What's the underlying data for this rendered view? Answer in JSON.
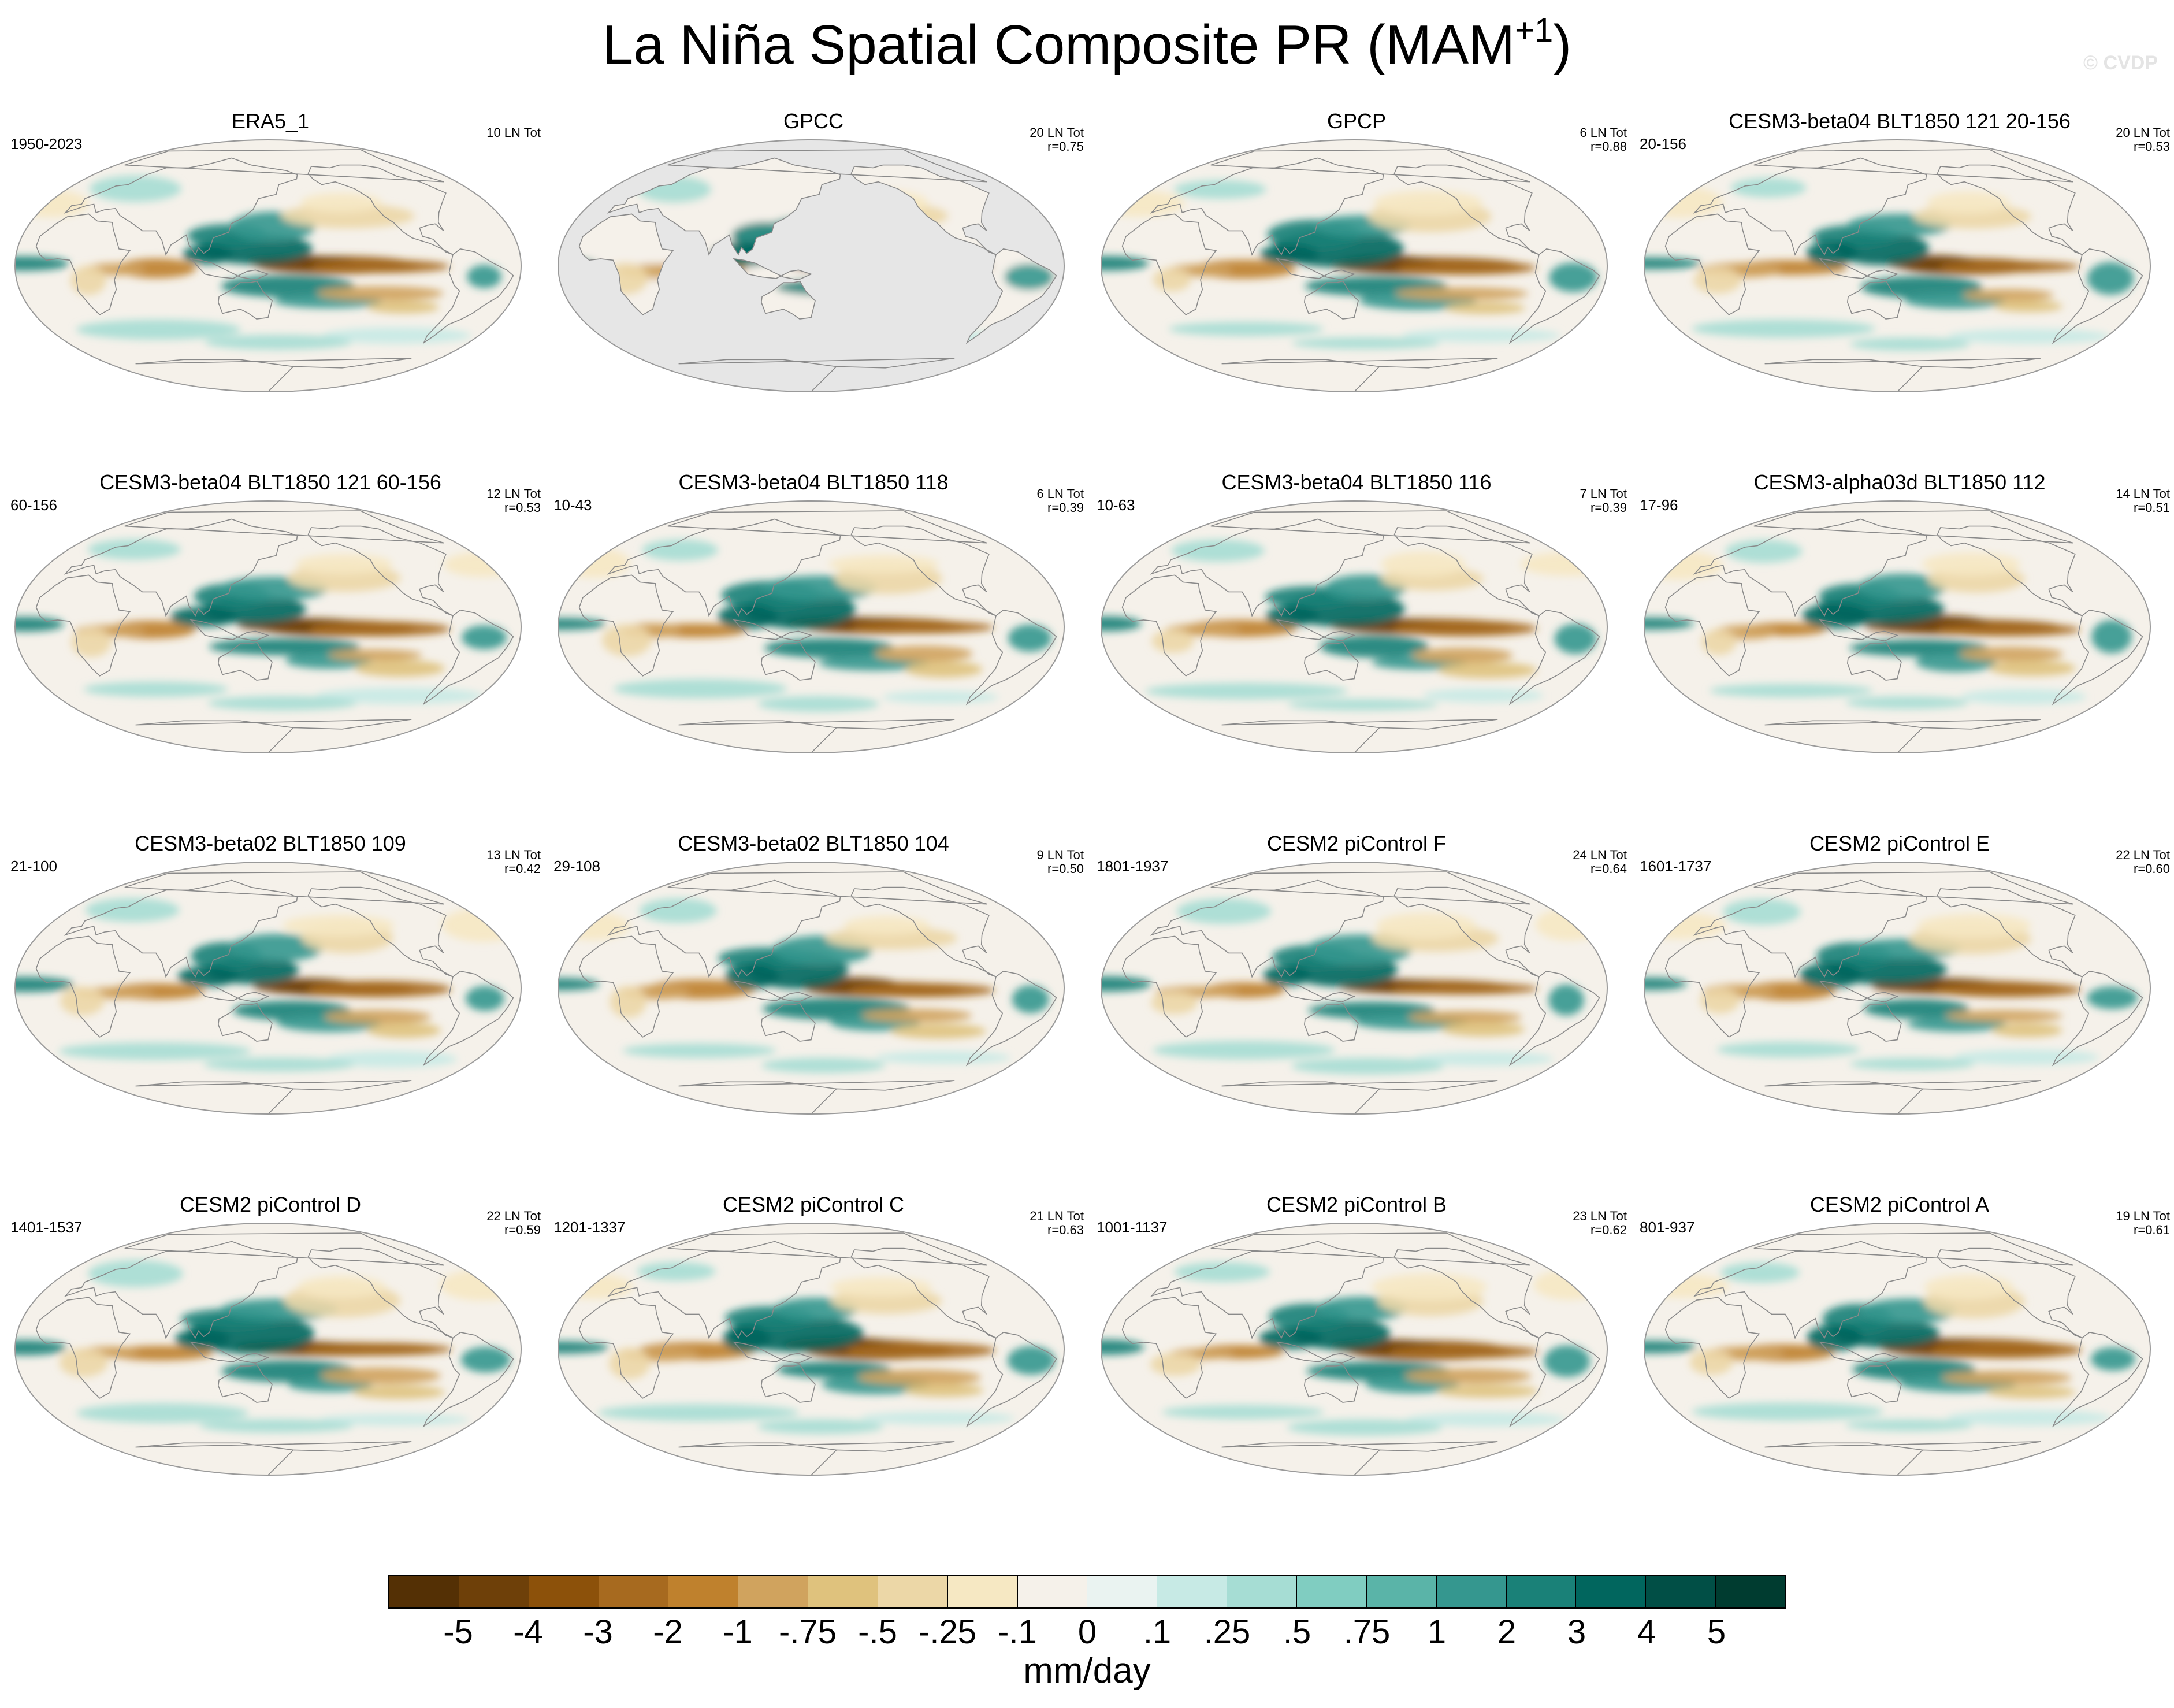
{
  "figure": {
    "title_main": "La Niña Spatial Composite PR (MAM",
    "title_sup": "+1",
    "title_end": ")",
    "watermark": "© CVDP"
  },
  "panels": [
    {
      "title": "ERA5_1",
      "left": "1950-2023",
      "right1": "10 LN Tot",
      "right2": "",
      "mask": "none",
      "pattern": 0
    },
    {
      "title": "GPCC",
      "left": "",
      "right1": "20 LN Tot",
      "right2": "r=0.75",
      "mask": "land",
      "pattern": 1
    },
    {
      "title": "GPCP",
      "left": "",
      "right1": "6 LN Tot",
      "right2": "r=0.88",
      "mask": "none",
      "pattern": 2
    },
    {
      "title": "CESM3-beta04 BLT1850 121 20-156",
      "left": "20-156",
      "right1": "20 LN Tot",
      "right2": "r=0.53",
      "mask": "none",
      "pattern": 3
    },
    {
      "title": "CESM3-beta04 BLT1850 121 60-156",
      "left": "60-156",
      "right1": "12 LN Tot",
      "right2": "r=0.53",
      "mask": "none",
      "pattern": 4
    },
    {
      "title": "CESM3-beta04 BLT1850 118",
      "left": "10-43",
      "right1": "6 LN Tot",
      "right2": "r=0.39",
      "mask": "none",
      "pattern": 5
    },
    {
      "title": "CESM3-beta04 BLT1850 116",
      "left": "10-63",
      "right1": "7 LN Tot",
      "right2": "r=0.39",
      "mask": "none",
      "pattern": 6
    },
    {
      "title": "CESM3-alpha03d BLT1850 112",
      "left": "17-96",
      "right1": "14 LN Tot",
      "right2": "r=0.51",
      "mask": "none",
      "pattern": 7
    },
    {
      "title": "CESM3-beta02 BLT1850 109",
      "left": "21-100",
      "right1": "13 LN Tot",
      "right2": "r=0.42",
      "mask": "none",
      "pattern": 8
    },
    {
      "title": "CESM3-beta02 BLT1850 104",
      "left": "29-108",
      "right1": "9 LN Tot",
      "right2": "r=0.50",
      "mask": "none",
      "pattern": 9
    },
    {
      "title": "CESM2 piControl F",
      "left": "1801-1937",
      "right1": "24 LN Tot",
      "right2": "r=0.64",
      "mask": "none",
      "pattern": 10
    },
    {
      "title": "CESM2 piControl E",
      "left": "1601-1737",
      "right1": "22 LN Tot",
      "right2": "r=0.60",
      "mask": "none",
      "pattern": 11
    },
    {
      "title": "CESM2 piControl D",
      "left": "1401-1537",
      "right1": "22 LN Tot",
      "right2": "r=0.59",
      "mask": "none",
      "pattern": 12
    },
    {
      "title": "CESM2 piControl C",
      "left": "1201-1337",
      "right1": "21 LN Tot",
      "right2": "r=0.63",
      "mask": "none",
      "pattern": 13
    },
    {
      "title": "CESM2 piControl B",
      "left": "1001-1137",
      "right1": "23 LN Tot",
      "right2": "r=0.62",
      "mask": "none",
      "pattern": 14
    },
    {
      "title": "CESM2 piControl A",
      "left": "801-937",
      "right1": "19 LN Tot",
      "right2": "r=0.61",
      "mask": "none",
      "pattern": 15
    }
  ],
  "colorbar": {
    "colors": [
      "#543005",
      "#6e4009",
      "#8c510a",
      "#a76a1f",
      "#bf812d",
      "#d0a35e",
      "#dfc27d",
      "#ecd7a7",
      "#f6e8c3",
      "#f5f1ea",
      "#eaf3f1",
      "#c7eae5",
      "#a6ddd4",
      "#80cdc1",
      "#5ab4a8",
      "#35978f",
      "#1a8178",
      "#01665e",
      "#014f46",
      "#003c30"
    ],
    "ticks": [
      "-5",
      "-4",
      "-3",
      "-2",
      "-1",
      "-.75",
      "-.5",
      "-.25",
      "-.1",
      "0",
      ".1",
      ".25",
      ".5",
      ".75",
      "1",
      "2",
      "3",
      "4",
      "5"
    ],
    "units": "mm/day"
  }
}
